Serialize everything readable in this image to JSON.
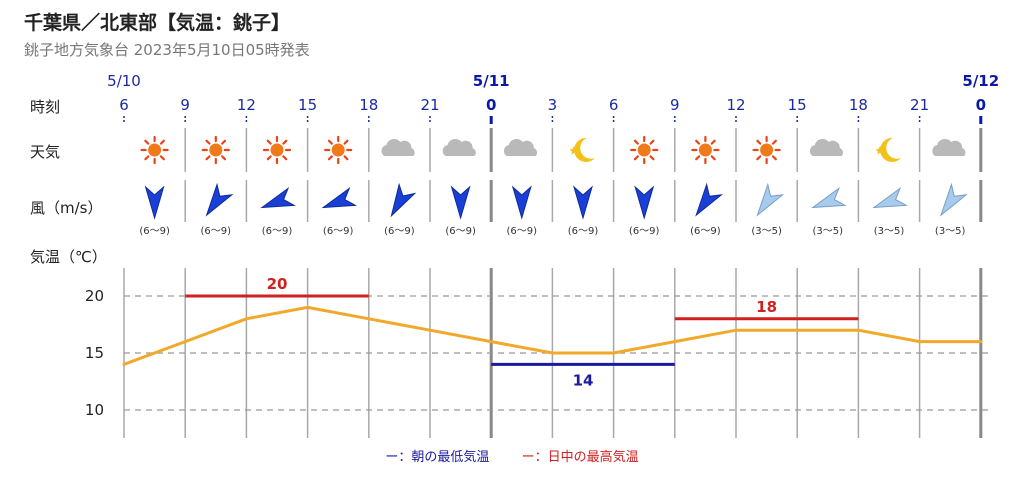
{
  "title": "千葉県／北東部【気温：銚子】",
  "subtitle": "銚子地方気象台 2023年5月10日05時発表",
  "row_labels": {
    "time": "時刻",
    "weather": "天気",
    "wind": "風（m/s）",
    "temperature": "気温（℃）"
  },
  "chart_data": {
    "type": "line",
    "dates": [
      {
        "label": "5/10",
        "at_index": 0
      },
      {
        "label": "5/11",
        "at_index": 6
      },
      {
        "label": "5/12",
        "at_index": 14
      }
    ],
    "categories": [
      "6",
      "9",
      "12",
      "15",
      "18",
      "21",
      "0",
      "3",
      "6",
      "9",
      "12",
      "15",
      "18",
      "21",
      "0"
    ],
    "weather": [
      "sun-icon",
      "sun-icon",
      "sun-icon",
      "sun-icon",
      "cloud-icon",
      "cloud-icon",
      "cloud-icon",
      "moon-icon",
      "sun-icon",
      "sun-icon",
      "sun-icon",
      "cloud-icon",
      "moon-icon",
      "cloud-icon"
    ],
    "wind": {
      "directions_deg": [
        0,
        35,
        70,
        70,
        30,
        0,
        0,
        0,
        0,
        35,
        35,
        70,
        70,
        35
      ],
      "speeds": [
        "(6〜9)",
        "(6〜9)",
        "(6〜9)",
        "(6〜9)",
        "(6〜9)",
        "(6〜9)",
        "(6〜9)",
        "(6〜9)",
        "(6〜9)",
        "(6〜9)",
        "(3〜5)",
        "(3〜5)",
        "(3〜5)",
        "(3〜5)"
      ],
      "strong_color": "#1a3fd6",
      "light_color": "#a7cbec"
    },
    "series": [
      {
        "values": [
          14,
          16,
          18,
          19,
          18,
          17,
          16,
          15,
          15,
          16,
          17,
          17,
          17,
          16,
          16
        ],
        "color": "#f0a92a"
      }
    ],
    "ylim": [
      8,
      22
    ],
    "yticks": [
      10,
      15,
      20
    ],
    "min_temp": {
      "value": 14,
      "from_index": 6,
      "to_index": 9,
      "label": "14",
      "color": "#1a1aa0"
    },
    "max_temps": [
      {
        "value": 20,
        "from_index": 1,
        "to_index": 4,
        "label": "20",
        "color": "#d02020"
      },
      {
        "value": 18,
        "from_index": 9,
        "to_index": 12,
        "label": "18",
        "color": "#d02020"
      }
    ],
    "grid": true
  },
  "legend": {
    "min_label": "ー：朝の最低気温",
    "min_color": "#1a1aa0",
    "max_label": "ー：日中の最高気温",
    "max_color": "#d02020"
  }
}
